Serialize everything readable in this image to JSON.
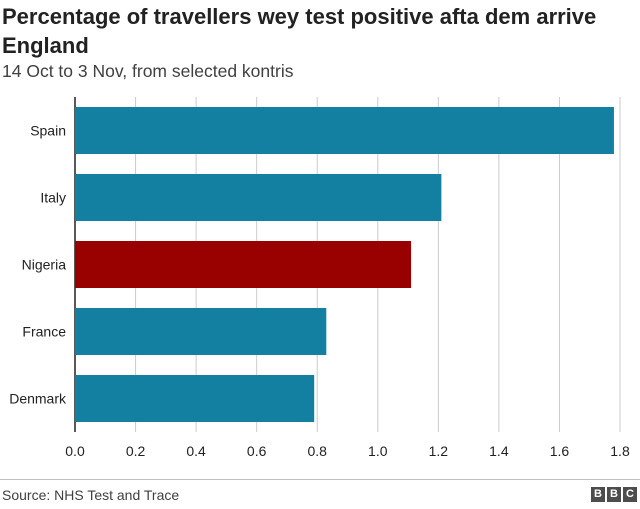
{
  "header": {
    "title": "Percentage of travellers wey test positive afta dem arrive England",
    "subtitle": "14 Oct to 3 Nov, from selected kontris"
  },
  "footer": {
    "source": "Source: NHS Test and Trace",
    "logo": [
      "B",
      "B",
      "C"
    ]
  },
  "colors": {
    "default_bar": "#1380A1",
    "highlight_bar": "#990000",
    "axis": "#222222",
    "grid": "#cbcbcb"
  },
  "chart_data": {
    "type": "bar",
    "orientation": "horizontal",
    "categories": [
      "Spain",
      "Italy",
      "Nigeria",
      "France",
      "Denmark"
    ],
    "values": [
      1.78,
      1.21,
      1.11,
      0.83,
      0.79
    ],
    "highlight": "Nigeria",
    "xlim": [
      0,
      1.8
    ],
    "xticks": [
      "0.0",
      "0.2",
      "0.4",
      "0.6",
      "0.8",
      "1.0",
      "1.2",
      "1.4",
      "1.6",
      "1.8"
    ],
    "xlabel": "",
    "ylabel": "",
    "grid": "vertical"
  }
}
